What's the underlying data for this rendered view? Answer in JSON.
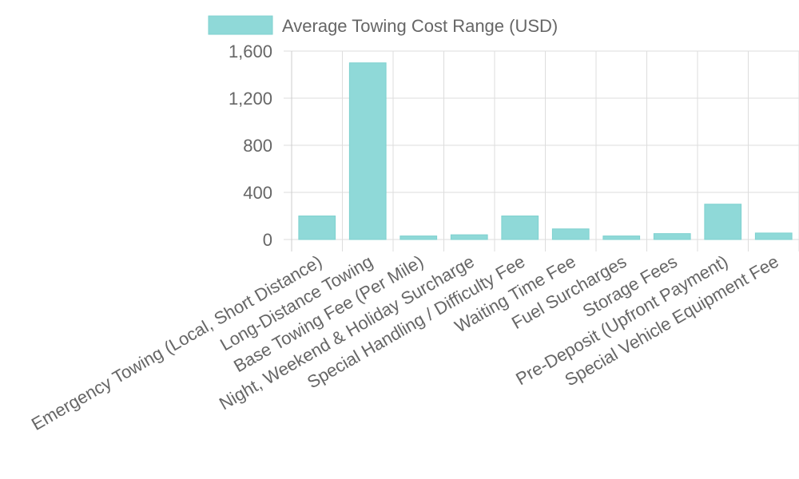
{
  "chart_data": {
    "type": "bar",
    "legend": {
      "label": "Average Towing Cost Range (USD)",
      "position": "top"
    },
    "categories": [
      "Emergency Towing (Local, Short Distance)",
      "Long-Distance Towing",
      "Base Towing Fee (Per Mile)",
      "Night, Weekend & Holiday Surcharge",
      "Special Handling / Difficulty Fee",
      "Waiting Time Fee",
      "Fuel Surcharges",
      "Storage Fees",
      "Pre-Deposit (Upfront Payment)",
      "Special Vehicle Equipment Fee"
    ],
    "series": [
      {
        "name": "Average Towing Cost Range (USD)",
        "values": [
          200,
          1500,
          30,
          40,
          200,
          90,
          30,
          50,
          300,
          55
        ]
      }
    ],
    "yticks": [
      "0",
      "400",
      "800",
      "1,200",
      "1,600"
    ],
    "ylim": [
      0,
      1600
    ],
    "grid": true,
    "colors": {
      "bar_fill": "#8fd9d8",
      "bar_stroke": "#7fd1cf",
      "grid": "#dddddd",
      "text": "#666666"
    }
  }
}
